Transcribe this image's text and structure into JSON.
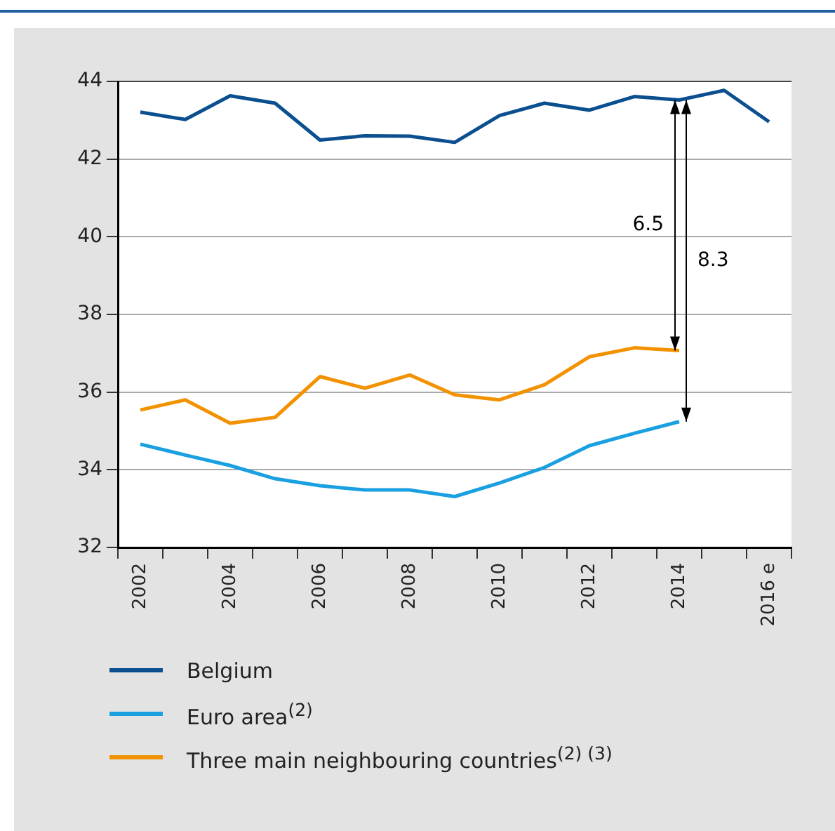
{
  "chart_data": {
    "type": "line",
    "categories": [
      "2002",
      null,
      "2004",
      null,
      "2006",
      null,
      "2008",
      null,
      "2010",
      null,
      "2012",
      null,
      "2014",
      null,
      "2016 e"
    ],
    "series": [
      {
        "name": "Belgium",
        "color": "#0b4f8f",
        "values": [
          43.21,
          43.02,
          43.63,
          43.44,
          42.49,
          42.6,
          42.59,
          42.43,
          43.12,
          43.44,
          43.26,
          43.61,
          43.52,
          43.77,
          42.96
        ]
      },
      {
        "name": "Euro area$^{(2)}$",
        "color": "#1aa0e0",
        "values": [
          34.66,
          34.38,
          34.11,
          33.77,
          33.59,
          33.48,
          33.48,
          33.31,
          33.66,
          34.06,
          34.62,
          34.94,
          35.24,
          null,
          null
        ]
      },
      {
        "name": "Three main neighbouring countries$^{(2) (3)}$",
        "color": "#f39200",
        "values": [
          35.54,
          35.8,
          35.2,
          35.35,
          36.4,
          36.1,
          36.44,
          35.93,
          35.8,
          36.19,
          36.91,
          37.14,
          37.07,
          null,
          null
        ]
      }
    ],
    "ylim": [
      32,
      44
    ],
    "yticks": [
      32,
      34,
      36,
      38,
      40,
      42,
      44
    ],
    "grid": "y",
    "legend": "bottom",
    "marker": "none",
    "line_style": "solid",
    "annotations": [
      "6.5",
      "8.3"
    ]
  }
}
